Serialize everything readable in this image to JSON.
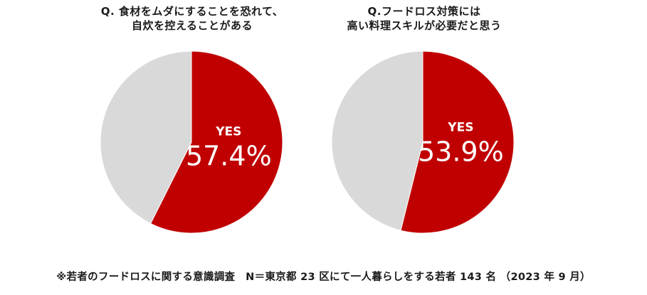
{
  "chart_data": [
    {
      "type": "pie",
      "title_lines": [
        "Q. 食材をムダにすることを恐れて、",
        "自炊を控えることがある"
      ],
      "slices": [
        {
          "label": "YES",
          "value": 57.4,
          "value_label": "57.4%",
          "color": "#c00000"
        },
        {
          "label": "",
          "value": 42.6,
          "color": "#d9d9d9"
        }
      ]
    },
    {
      "type": "pie",
      "title_lines": [
        "Q.フードロス対策には",
        "高い料理スキルが必要だと思う"
      ],
      "slices": [
        {
          "label": "YES",
          "value": 53.9,
          "value_label": "53.9%",
          "color": "#c00000"
        },
        {
          "label": "",
          "value": 46.1,
          "color": "#d9d9d9"
        }
      ]
    }
  ],
  "footnote": "※若者のフードロスに関する意識調査　N＝東京都 23 区にて一人暮らしをする若者 143 名 （2023 年 9 月）"
}
